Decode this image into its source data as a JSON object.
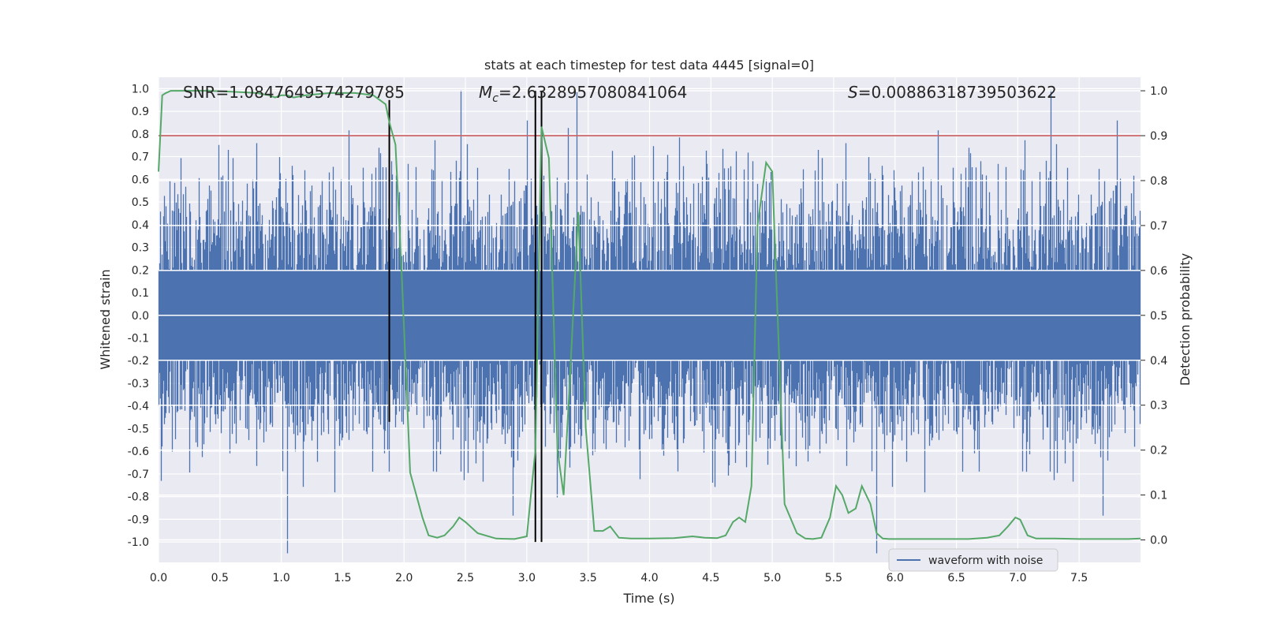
{
  "chart_data": {
    "type": "line",
    "title": "stats at each timestep for test data 4445 [signal=0]",
    "xlabel": "Time (s)",
    "ylabel": "Whitened strain",
    "y2label": "Detection probability",
    "xlim": [
      0.0,
      8.0
    ],
    "ylim": [
      -1.09,
      1.05
    ],
    "y2lim": [
      -0.05,
      1.03
    ],
    "xticks": [
      "0.0",
      "0.5",
      "1.0",
      "1.5",
      "2.0",
      "2.5",
      "3.0",
      "3.5",
      "4.0",
      "4.5",
      "5.0",
      "5.5",
      "6.0",
      "6.5",
      "7.0",
      "7.5"
    ],
    "yticks": [
      "1.0",
      "0.9",
      "0.8",
      "0.7",
      "0.6",
      "0.5",
      "0.4",
      "0.3",
      "0.2",
      "0.1",
      "0.0",
      "-0.1",
      "-0.2",
      "-0.3",
      "-0.4",
      "-0.5",
      "-0.6",
      "-0.7",
      "-0.8",
      "-0.9",
      "-1.0"
    ],
    "y2ticks": [
      "1.0",
      "0.9",
      "0.8",
      "0.7",
      "0.6",
      "0.5",
      "0.4",
      "0.3",
      "0.2",
      "0.1",
      "0.0"
    ],
    "annotations": {
      "snr": "SNR=1.0847649574279785",
      "mc_symbol": "M",
      "mc_sub": "c",
      "mc_value": "=2.6328957080841064",
      "s_symbol": "S",
      "s_value": "=0.00886318739503622"
    },
    "threshold": 0.9,
    "threshold_color": "#c44e52",
    "vertical_lines_x": [
      1.88,
      3.07,
      3.12
    ],
    "legend": [
      "waveform with noise"
    ],
    "series": [
      {
        "name": "waveform with noise",
        "color": "#4c72b0",
        "n_samples": 8192,
        "amplitude_scale": 0.26,
        "dense_band": [
          -0.2,
          0.2
        ]
      },
      {
        "name": "Detection probability",
        "color": "#55a868",
        "x": [
          0.0,
          0.03,
          0.06,
          0.1,
          0.2,
          0.4,
          0.6,
          0.8,
          0.9,
          0.95,
          1.0,
          1.05,
          1.1,
          1.2,
          1.4,
          1.6,
          1.75,
          1.85,
          1.88,
          1.93,
          1.98,
          2.05,
          2.1,
          2.15,
          2.2,
          2.27,
          2.33,
          2.4,
          2.45,
          2.5,
          2.6,
          2.75,
          2.9,
          3.0,
          3.07,
          3.12,
          3.18,
          3.25,
          3.3,
          3.35,
          3.42,
          3.48,
          3.55,
          3.62,
          3.68,
          3.75,
          3.85,
          4.0,
          4.2,
          4.35,
          4.45,
          4.55,
          4.62,
          4.68,
          4.73,
          4.78,
          4.83,
          4.88,
          4.95,
          5.0,
          5.05,
          5.1,
          5.2,
          5.27,
          5.33,
          5.4,
          5.47,
          5.52,
          5.57,
          5.62,
          5.68,
          5.73,
          5.8,
          5.85,
          5.9,
          5.95,
          6.05,
          6.2,
          6.4,
          6.6,
          6.75,
          6.85,
          6.92,
          6.98,
          7.02,
          7.08,
          7.15,
          7.3,
          7.5,
          7.7,
          7.9,
          8.0
        ],
        "y": [
          0.82,
          0.99,
          0.995,
          1.0,
          1.0,
          1.0,
          0.998,
          0.995,
          0.99,
          0.985,
          0.99,
          0.99,
          0.985,
          0.99,
          0.995,
          0.995,
          0.99,
          0.97,
          0.93,
          0.88,
          0.6,
          0.15,
          0.1,
          0.05,
          0.01,
          0.005,
          0.01,
          0.03,
          0.05,
          0.04,
          0.015,
          0.003,
          0.002,
          0.008,
          0.2,
          0.92,
          0.85,
          0.2,
          0.1,
          0.35,
          0.73,
          0.25,
          0.02,
          0.02,
          0.03,
          0.005,
          0.003,
          0.003,
          0.004,
          0.008,
          0.005,
          0.004,
          0.01,
          0.04,
          0.05,
          0.04,
          0.12,
          0.7,
          0.84,
          0.82,
          0.45,
          0.08,
          0.015,
          0.003,
          0.002,
          0.005,
          0.05,
          0.12,
          0.1,
          0.06,
          0.07,
          0.12,
          0.08,
          0.015,
          0.003,
          0.002,
          0.002,
          0.002,
          0.002,
          0.002,
          0.005,
          0.01,
          0.03,
          0.05,
          0.045,
          0.01,
          0.003,
          0.003,
          0.002,
          0.002,
          0.002,
          0.003
        ]
      }
    ]
  }
}
